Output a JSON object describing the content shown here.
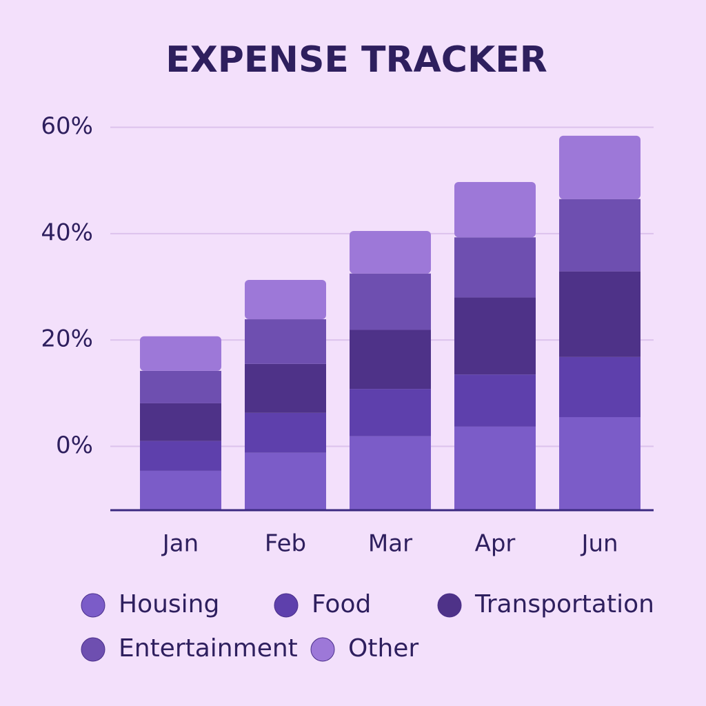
{
  "chart_data": {
    "type": "stacked_bar",
    "title": "EXPENSE TRACKER",
    "categories": [
      "Jan",
      "Feb",
      "Mar",
      "Apr",
      "Jun"
    ],
    "series": [
      {
        "name": "Housing",
        "color": "#7b5cc8",
        "values": [
          7.4,
          10.8,
          13.9,
          15.7,
          17.5
        ]
      },
      {
        "name": "Food",
        "color": "#5e40ac",
        "values": [
          5.6,
          7.5,
          8.9,
          9.8,
          11.3
        ]
      },
      {
        "name": "Transportation",
        "color": "#4e3288",
        "values": [
          7.1,
          9.2,
          11.1,
          14.5,
          16.1
        ]
      },
      {
        "name": "Entertainment",
        "color": "#6e4fb0",
        "values": [
          6.1,
          8.4,
          10.6,
          11.3,
          13.6
        ]
      },
      {
        "name": "Other",
        "color": "#9d78d8",
        "values": [
          6.5,
          7.4,
          8.0,
          10.4,
          11.9
        ]
      }
    ],
    "ylim": [
      -12,
      65
    ],
    "yticks": [
      {
        "value": 0,
        "label": "0%"
      },
      {
        "value": 20,
        "label": "20%"
      },
      {
        "value": 40,
        "label": "40%"
      },
      {
        "value": 60,
        "label": "60%"
      }
    ],
    "grid": true
  }
}
